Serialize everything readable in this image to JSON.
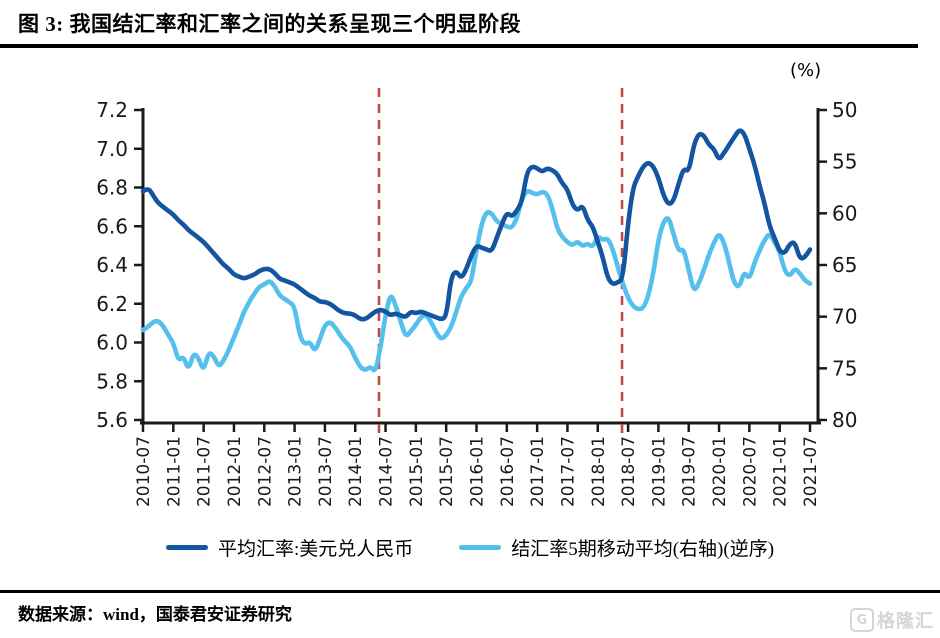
{
  "title": "图 3:  我国结汇率和汇率之间的关系呈现三个明显阶段",
  "source": "数据来源：wind，国泰君安证券研究",
  "watermark": {
    "logo_letter": "G",
    "text": "格隆汇"
  },
  "colors": {
    "exchange_rate_line": "#1355a0",
    "settlement_line": "#55c0ec",
    "phase_divider": "#c24848",
    "axis": "#1a1a1a"
  },
  "legend": {
    "items": [
      {
        "label": "平均汇率:美元兑人民币",
        "color": "#1355a0"
      },
      {
        "label": "结汇率5期移动平均(右轴)(逆序)",
        "color": "#55c0ec"
      }
    ]
  },
  "chart_data": {
    "type": "line",
    "x_start": "2010-07",
    "x_end": "2021-07",
    "frequency": "monthly",
    "x_tick_labels": [
      "2010-07",
      "2011-01",
      "2011-07",
      "2012-01",
      "2012-07",
      "2013-01",
      "2013-07",
      "2014-01",
      "2014-07",
      "2015-01",
      "2015-07",
      "2016-01",
      "2016-07",
      "2017-01",
      "2017-07",
      "2018-01",
      "2018-07",
      "2019-01",
      "2019-07",
      "2020-01",
      "2020-07",
      "2021-01",
      "2021-07"
    ],
    "left_axis": {
      "min": 5.6,
      "max": 7.2,
      "tick_labels": [
        "7.2",
        "7.0",
        "6.8",
        "6.6",
        "6.4",
        "6.2",
        "6.0",
        "5.8",
        "5.6"
      ]
    },
    "right_axis": {
      "min": 50,
      "max": 80,
      "reversed": true,
      "unit": "(%)",
      "tick_labels": [
        "50",
        "55",
        "60",
        "65",
        "70",
        "75",
        "80"
      ]
    },
    "grid": false,
    "legend_position": "bottom",
    "series": [
      {
        "name": "平均汇率:美元兑人民币",
        "axis": "left",
        "color": "#1355a0",
        "values": [
          6.78,
          6.8,
          6.76,
          6.72,
          6.7,
          6.68,
          6.66,
          6.63,
          6.61,
          6.58,
          6.56,
          6.54,
          6.52,
          6.49,
          6.46,
          6.43,
          6.4,
          6.38,
          6.35,
          6.34,
          6.33,
          6.34,
          6.35,
          6.37,
          6.38,
          6.38,
          6.36,
          6.33,
          6.32,
          6.31,
          6.3,
          6.28,
          6.26,
          6.24,
          6.23,
          6.21,
          6.21,
          6.2,
          6.18,
          6.16,
          6.15,
          6.15,
          6.14,
          6.12,
          6.12,
          6.14,
          6.16,
          6.17,
          6.16,
          6.14,
          6.15,
          6.14,
          6.13,
          6.16,
          6.15,
          6.16,
          6.15,
          6.14,
          6.13,
          6.12,
          6.13,
          6.34,
          6.37,
          6.33,
          6.38,
          6.45,
          6.5,
          6.49,
          6.48,
          6.47,
          6.54,
          6.61,
          6.67,
          6.65,
          6.68,
          6.73,
          6.88,
          6.91,
          6.9,
          6.88,
          6.9,
          6.89,
          6.87,
          6.82,
          6.79,
          6.71,
          6.68,
          6.71,
          6.63,
          6.6,
          6.52,
          6.44,
          6.33,
          6.3,
          6.31,
          6.33,
          6.62,
          6.8,
          6.86,
          6.91,
          6.93,
          6.91,
          6.85,
          6.76,
          6.71,
          6.73,
          6.82,
          6.9,
          6.88,
          7.02,
          7.08,
          7.07,
          7.02,
          7.0,
          6.94,
          6.98,
          7.02,
          7.06,
          7.1,
          7.08,
          7.0,
          6.92,
          6.81,
          6.72,
          6.6,
          6.54,
          6.47,
          6.46,
          6.51,
          6.52,
          6.43,
          6.44,
          6.48
        ]
      },
      {
        "name": "结汇率5期移动平均(右轴)(逆序)",
        "axis": "right",
        "color": "#55c0ec",
        "values": [
          71.3,
          71.0,
          70.5,
          70.4,
          70.9,
          71.8,
          72.5,
          74.3,
          73.8,
          75.2,
          73.5,
          74.0,
          75.3,
          73.4,
          73.8,
          74.9,
          74.2,
          73.2,
          72.0,
          70.8,
          69.5,
          68.6,
          67.8,
          67.1,
          66.9,
          66.5,
          67.0,
          67.9,
          68.3,
          68.6,
          69.0,
          71.8,
          72.7,
          72.4,
          73.4,
          72.2,
          70.8,
          70.5,
          71.0,
          71.8,
          72.4,
          72.9,
          74.0,
          74.9,
          75.2,
          74.8,
          75.4,
          73.0,
          69.8,
          67.7,
          68.9,
          70.5,
          72.0,
          71.4,
          70.8,
          70.0,
          69.8,
          70.5,
          71.5,
          72.2,
          71.8,
          71.0,
          69.5,
          68.0,
          67.2,
          66.6,
          63.5,
          61.0,
          59.8,
          60.0,
          60.8,
          61.0,
          61.3,
          61.4,
          60.5,
          58.5,
          57.8,
          58.0,
          58.2,
          57.9,
          58.1,
          59.5,
          61.5,
          62.3,
          62.8,
          63.1,
          62.7,
          63.2,
          62.9,
          63.3,
          62.2,
          62.6,
          62.4,
          63.5,
          65.3,
          66.8,
          68.2,
          69.0,
          69.3,
          69.2,
          68.0,
          65.8,
          62.5,
          60.8,
          60.3,
          62.0,
          63.7,
          63.4,
          65.5,
          67.6,
          66.8,
          65.5,
          64.0,
          62.8,
          61.9,
          62.8,
          64.8,
          66.8,
          67.2,
          65.6,
          66.4,
          64.8,
          63.6,
          62.6,
          61.9,
          62.8,
          63.7,
          65.6,
          66.1,
          65.3,
          65.8,
          66.5,
          66.8
        ]
      }
    ],
    "annotations": {
      "vlines": [
        {
          "approx_date": "2014-05",
          "month_index": 46.7,
          "color": "#c24848",
          "style": "dashed"
        },
        {
          "approx_date": "2018-05",
          "month_index": 94.8,
          "color": "#c24848",
          "style": "dashed"
        }
      ]
    }
  }
}
